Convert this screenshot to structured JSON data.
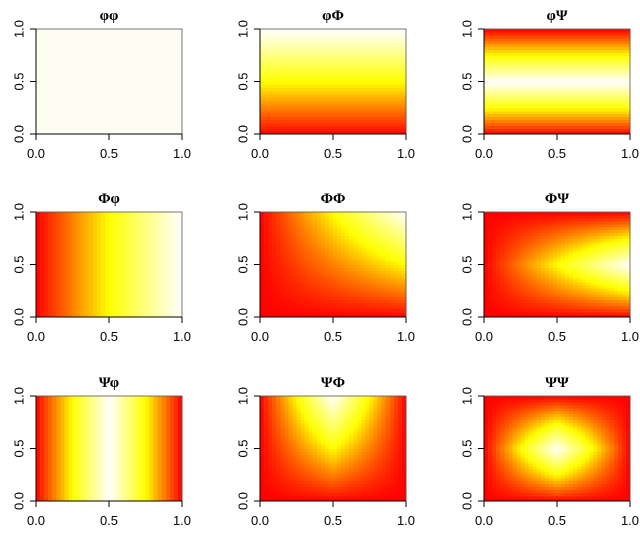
{
  "chart_data": [
    {
      "type": "heatmap",
      "title": "φφ",
      "pattern": "blank",
      "xlim": [
        0,
        1
      ],
      "ylim": [
        0,
        1
      ],
      "xticks": [
        "0.0",
        "0.5",
        "1.0"
      ],
      "yticks": [
        "0.0",
        "0.5",
        "1.0"
      ],
      "colorscale": [
        "#ff0000",
        "#ffff00",
        "#ffffff"
      ],
      "blank_color": "#fdfdf2"
    },
    {
      "type": "heatmap",
      "title": "φΦ",
      "pattern": "y",
      "xlim": [
        0,
        1
      ],
      "ylim": [
        0,
        1
      ],
      "xticks": [
        "0.0",
        "0.5",
        "1.0"
      ],
      "yticks": [
        "0.0",
        "0.5",
        "1.0"
      ],
      "colorscale": [
        "#ff0000",
        "#ffff00",
        "#ffffff"
      ]
    },
    {
      "type": "heatmap",
      "title": "φΨ",
      "pattern": "y-peak",
      "xlim": [
        0,
        1
      ],
      "ylim": [
        0,
        1
      ],
      "xticks": [
        "0.0",
        "0.5",
        "1.0"
      ],
      "yticks": [
        "0.0",
        "0.5",
        "1.0"
      ],
      "colorscale": [
        "#ff0000",
        "#ffff00",
        "#ffffff"
      ]
    },
    {
      "type": "heatmap",
      "title": "Φφ",
      "pattern": "x",
      "xlim": [
        0,
        1
      ],
      "ylim": [
        0,
        1
      ],
      "xticks": [
        "0.0",
        "0.5",
        "1.0"
      ],
      "yticks": [
        "0.0",
        "0.5",
        "1.0"
      ],
      "colorscale": [
        "#ff0000",
        "#ffff00",
        "#ffffff"
      ]
    },
    {
      "type": "heatmap",
      "title": "ΦΦ",
      "pattern": "xy",
      "xlim": [
        0,
        1
      ],
      "ylim": [
        0,
        1
      ],
      "xticks": [
        "0.0",
        "0.5",
        "1.0"
      ],
      "yticks": [
        "0.0",
        "0.5",
        "1.0"
      ],
      "colorscale": [
        "#ff0000",
        "#ffff00",
        "#ffffff"
      ]
    },
    {
      "type": "heatmap",
      "title": "ΦΨ",
      "pattern": "x-ypeak",
      "xlim": [
        0,
        1
      ],
      "ylim": [
        0,
        1
      ],
      "xticks": [
        "0.0",
        "0.5",
        "1.0"
      ],
      "yticks": [
        "0.0",
        "0.5",
        "1.0"
      ],
      "colorscale": [
        "#ff0000",
        "#ffff00",
        "#ffffff"
      ]
    },
    {
      "type": "heatmap",
      "title": "Ψφ",
      "pattern": "x-peak",
      "xlim": [
        0,
        1
      ],
      "ylim": [
        0,
        1
      ],
      "xticks": [
        "0.0",
        "0.5",
        "1.0"
      ],
      "yticks": [
        "0.0",
        "0.5",
        "1.0"
      ],
      "colorscale": [
        "#ff0000",
        "#ffff00",
        "#ffffff"
      ]
    },
    {
      "type": "heatmap",
      "title": "ΨΦ",
      "pattern": "xpeak-y",
      "xlim": [
        0,
        1
      ],
      "ylim": [
        0,
        1
      ],
      "xticks": [
        "0.0",
        "0.5",
        "1.0"
      ],
      "yticks": [
        "0.0",
        "0.5",
        "1.0"
      ],
      "colorscale": [
        "#ff0000",
        "#ffff00",
        "#ffffff"
      ]
    },
    {
      "type": "heatmap",
      "title": "ΨΨ",
      "pattern": "xy-peak",
      "xlim": [
        0,
        1
      ],
      "ylim": [
        0,
        1
      ],
      "xticks": [
        "0.0",
        "0.5",
        "1.0"
      ],
      "yticks": [
        "0.0",
        "0.5",
        "1.0"
      ],
      "colorscale": [
        "#ff0000",
        "#ffff00",
        "#ffffff"
      ]
    }
  ]
}
